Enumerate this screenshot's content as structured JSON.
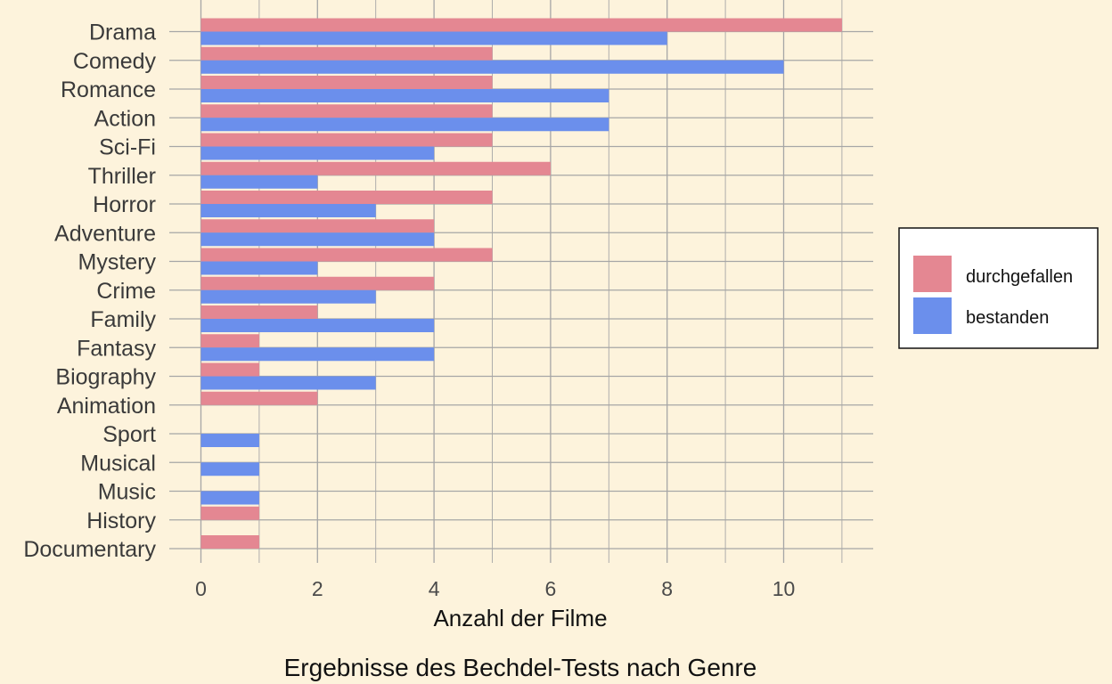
{
  "chart_data": {
    "type": "bar",
    "orientation": "horizontal",
    "categories": [
      "Drama",
      "Comedy",
      "Romance",
      "Action",
      "Sci-Fi",
      "Thriller",
      "Horror",
      "Adventure",
      "Mystery",
      "Crime",
      "Family",
      "Fantasy",
      "Biography",
      "Animation",
      "Sport",
      "Musical",
      "Music",
      "History",
      "Documentary"
    ],
    "series": [
      {
        "name": "durchgefallen",
        "color": "#e48792",
        "values": [
          11,
          5,
          5,
          5,
          5,
          6,
          5,
          4,
          5,
          4,
          2,
          1,
          1,
          2,
          0,
          0,
          0,
          1,
          1
        ]
      },
      {
        "name": "bestanden",
        "color": "#6b8fec",
        "values": [
          8,
          10,
          7,
          7,
          4,
          2,
          3,
          4,
          2,
          3,
          4,
          4,
          3,
          0,
          1,
          1,
          1,
          0,
          0
        ]
      }
    ],
    "xlabel": "Anzahl der Filme",
    "ylabel": "",
    "caption": "Ergebnisse des Bechdel-Tests nach Genre",
    "xlim": [
      0,
      11.5
    ],
    "xticks": [
      0,
      2,
      4,
      6,
      8,
      10
    ],
    "grid": true,
    "legend_position": "right",
    "background": "#fdf3dc",
    "grid_color": "#a6a6a6"
  }
}
